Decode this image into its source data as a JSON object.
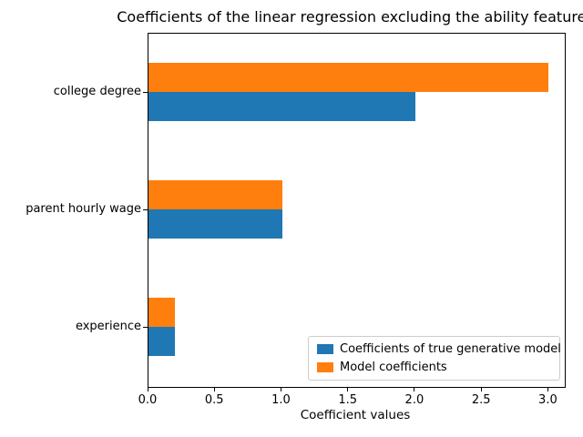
{
  "title": "Coefficients of the linear regression excluding the ability features",
  "chart_data": {
    "type": "bar",
    "orientation": "horizontal",
    "title": "Coefficients of the linear regression excluding the ability features",
    "categories": [
      "college degree",
      "parent hourly wage",
      "experience"
    ],
    "series": [
      {
        "name": "Coefficients of true generative model",
        "color": "#1f77b4",
        "values": [
          2.0,
          1.0,
          0.2
        ]
      },
      {
        "name": "Model coefficients",
        "color": "#ff7f0e",
        "values": [
          3.0,
          1.0,
          0.2
        ]
      }
    ],
    "xlabel": "Coefficient values",
    "ylabel": "",
    "xlim": [
      0,
      3.12
    ],
    "xticks": [
      "0.0",
      "0.5",
      "1.0",
      "1.5",
      "2.0",
      "2.5",
      "3.0"
    ],
    "xtick_values": [
      0,
      0.5,
      1.0,
      1.5,
      2.0,
      2.5,
      3.0
    ],
    "grid": false,
    "legend_position": "lower right"
  }
}
